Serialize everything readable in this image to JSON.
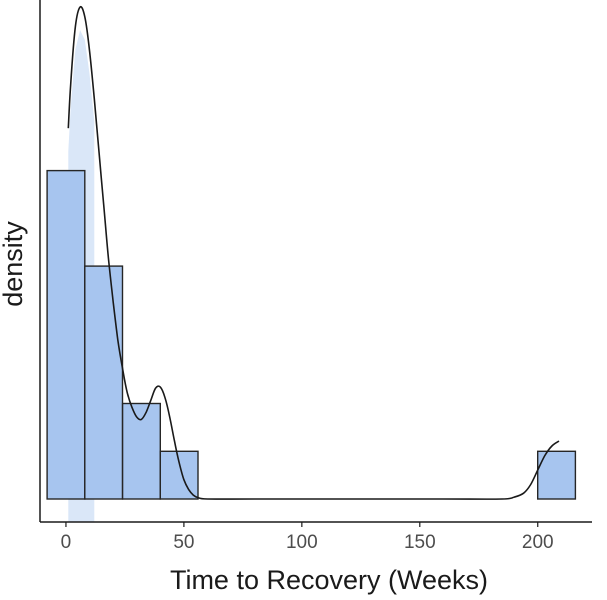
{
  "chart_data": {
    "type": "histogram",
    "title": "",
    "xlabel": "Time to Recovery (Weeks)",
    "ylabel": "density",
    "xlim": [
      -11,
      223
    ],
    "ylim": [
      0,
      1.07
    ],
    "x_ticks": [
      {
        "value": 0,
        "label": "0"
      },
      {
        "value": 50,
        "label": "50"
      },
      {
        "value": 100,
        "label": "100"
      },
      {
        "value": 150,
        "label": "150"
      },
      {
        "value": 200,
        "label": "200"
      }
    ],
    "y_ticks_shown": false,
    "grid": false,
    "legend": "none",
    "bins": [
      {
        "x0": -8,
        "x1": 8,
        "value": 0.681
      },
      {
        "x0": 8,
        "x1": 24,
        "value": 0.483
      },
      {
        "x0": 24,
        "x1": 40,
        "value": 0.198
      },
      {
        "x0": 40,
        "x1": 56,
        "value": 0.099
      },
      {
        "x0": 56,
        "x1": 72,
        "value": 0
      },
      {
        "x0": 72,
        "x1": 88,
        "value": 0
      },
      {
        "x0": 88,
        "x1": 104,
        "value": 0
      },
      {
        "x0": 104,
        "x1": 120,
        "value": 0
      },
      {
        "x0": 120,
        "x1": 136,
        "value": 0
      },
      {
        "x0": 136,
        "x1": 152,
        "value": 0
      },
      {
        "x0": 152,
        "x1": 168,
        "value": 0
      },
      {
        "x0": 168,
        "x1": 184,
        "value": 0
      },
      {
        "x0": 184,
        "x1": 200,
        "value": 0
      },
      {
        "x0": 200,
        "x1": 216,
        "value": 0.099
      }
    ],
    "density_curve": {
      "x": [
        1,
        2,
        4,
        6,
        8,
        10,
        12,
        14,
        16,
        18,
        20,
        22,
        24,
        26,
        28,
        30,
        32,
        34,
        36,
        38,
        40,
        42,
        44,
        46,
        48,
        50,
        52,
        54,
        56,
        60,
        80,
        120,
        160,
        185,
        190,
        194,
        197,
        200,
        203,
        206,
        209
      ],
      "y": [
        0.769,
        0.86,
        0.98,
        1.02,
        1.0,
        0.93,
        0.83,
        0.72,
        0.61,
        0.5,
        0.41,
        0.33,
        0.27,
        0.22,
        0.19,
        0.17,
        0.165,
        0.18,
        0.205,
        0.23,
        0.232,
        0.21,
        0.17,
        0.12,
        0.075,
        0.04,
        0.02,
        0.008,
        0.003,
        0.0,
        0.0,
        0.0,
        0.0,
        0.0,
        0.004,
        0.012,
        0.03,
        0.06,
        0.09,
        0.11,
        0.12
      ],
      "fill_to_x": 12
    },
    "colors": {
      "bar_fill": "#a7c5ef",
      "bar_stroke": "#262626",
      "density_fill": "#dae7f8",
      "density_line": "#1a1a1a",
      "axis": "#1a1a1a",
      "tick_label": "#4d4d4d"
    }
  }
}
